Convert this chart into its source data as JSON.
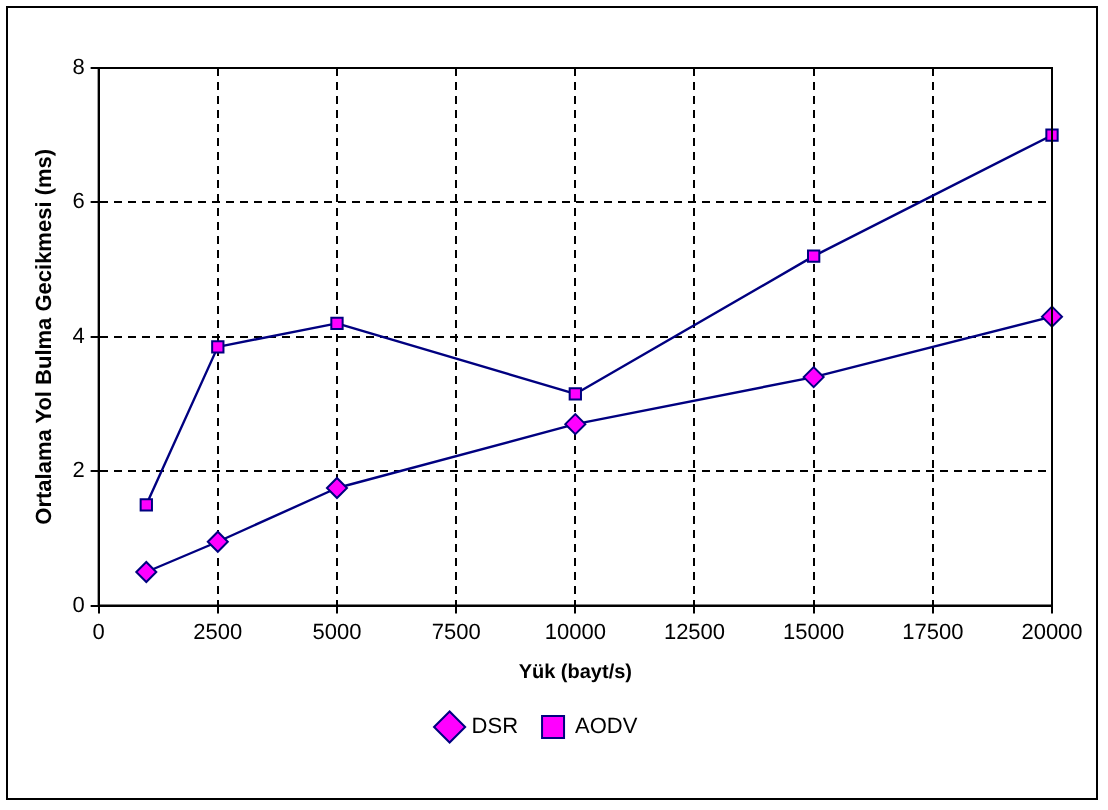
{
  "chart_data": {
    "type": "line",
    "xlabel": "Yük (bayt/s)",
    "ylabel": "Ortalama Yol Bulma Gecikmesi (ms)",
    "x": [
      1000,
      2500,
      5000,
      10000,
      15000,
      20000
    ],
    "series": [
      {
        "name": "DSR",
        "color": "#000080",
        "colors": [
          "#ff00ff",
          "#ff00ff",
          "#ff00ff",
          "#ff00ff",
          "#ff00ff",
          "#ff00ff"
        ],
        "marker": "diamond",
        "values": [
          0.5,
          0.95,
          1.75,
          2.7,
          3.4,
          4.3
        ]
      },
      {
        "name": "AODV",
        "color": "#000080",
        "colors": [
          "#ff00ff",
          "#ff00ff",
          "#ff00ff",
          "#ff00ff",
          "#ff00ff",
          "#ff00ff"
        ],
        "marker": "square",
        "values": [
          1.5,
          3.85,
          4.2,
          3.15,
          5.2,
          7.0
        ]
      }
    ],
    "xlim": [
      0,
      20000
    ],
    "xticks": [
      0,
      2500,
      5000,
      7500,
      10000,
      12500,
      15000,
      17500,
      20000
    ],
    "ylim": [
      0,
      8
    ],
    "yticks": [
      0,
      2,
      4,
      6,
      8
    ],
    "grid": true,
    "legend": "bottom",
    "line_style": "solid"
  }
}
